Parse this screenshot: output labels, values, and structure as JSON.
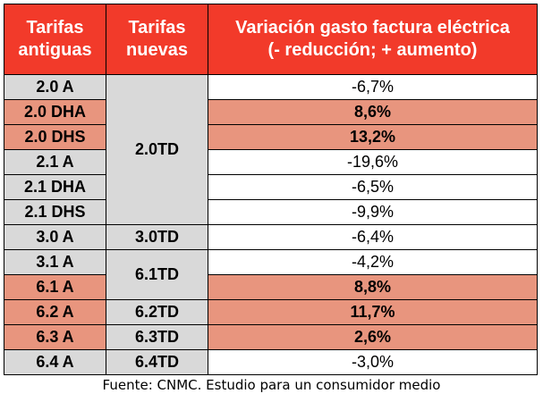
{
  "headers": {
    "old_tariffs_line1": "Tarifas",
    "old_tariffs_line2": "antiguas",
    "new_tariffs_line1": "Tarifas",
    "new_tariffs_line2": "nuevas",
    "variation_line1": "Variación gasto factura eléctrica",
    "variation_line2": "(- reducción; + aumento)"
  },
  "rows": [
    {
      "old": "2.0 A",
      "variation": "-6,7%",
      "highlight": false
    },
    {
      "old": "2.0 DHA",
      "variation": "8,6%",
      "highlight": true
    },
    {
      "old": "2.0 DHS",
      "variation": "13,2%",
      "highlight": true
    },
    {
      "old": "2.1 A",
      "variation": "-19,6%",
      "highlight": false
    },
    {
      "old": "2.1 DHA",
      "variation": "-6,5%",
      "highlight": false
    },
    {
      "old": "2.1 DHS",
      "variation": "-9,9%",
      "highlight": false
    },
    {
      "old": "3.0 A",
      "variation": "-6,4%",
      "highlight": false
    },
    {
      "old": "3.1 A",
      "variation": "-4,2%",
      "highlight": false
    },
    {
      "old": "6.1 A",
      "variation": "8,8%",
      "highlight": true
    },
    {
      "old": "6.2 A",
      "variation": "11,7%",
      "highlight": true
    },
    {
      "old": "6.3 A",
      "variation": "2,6%",
      "highlight": true
    },
    {
      "old": "6.4 A",
      "variation": "-3,0%",
      "highlight": false
    }
  ],
  "new_tariffs": {
    "group1": "2.0TD",
    "group2": "3.0TD",
    "group3": "6.1TD",
    "group4": "6.2TD",
    "group5": "6.3TD",
    "group6": "6.4TD"
  },
  "source": "Fuente: CNMC. Estudio para un consumidor medio",
  "colors": {
    "header": "#f23a2a",
    "highlight": "#e8957e",
    "neutral_cell": "#d9d9d9",
    "border": "#000000"
  }
}
